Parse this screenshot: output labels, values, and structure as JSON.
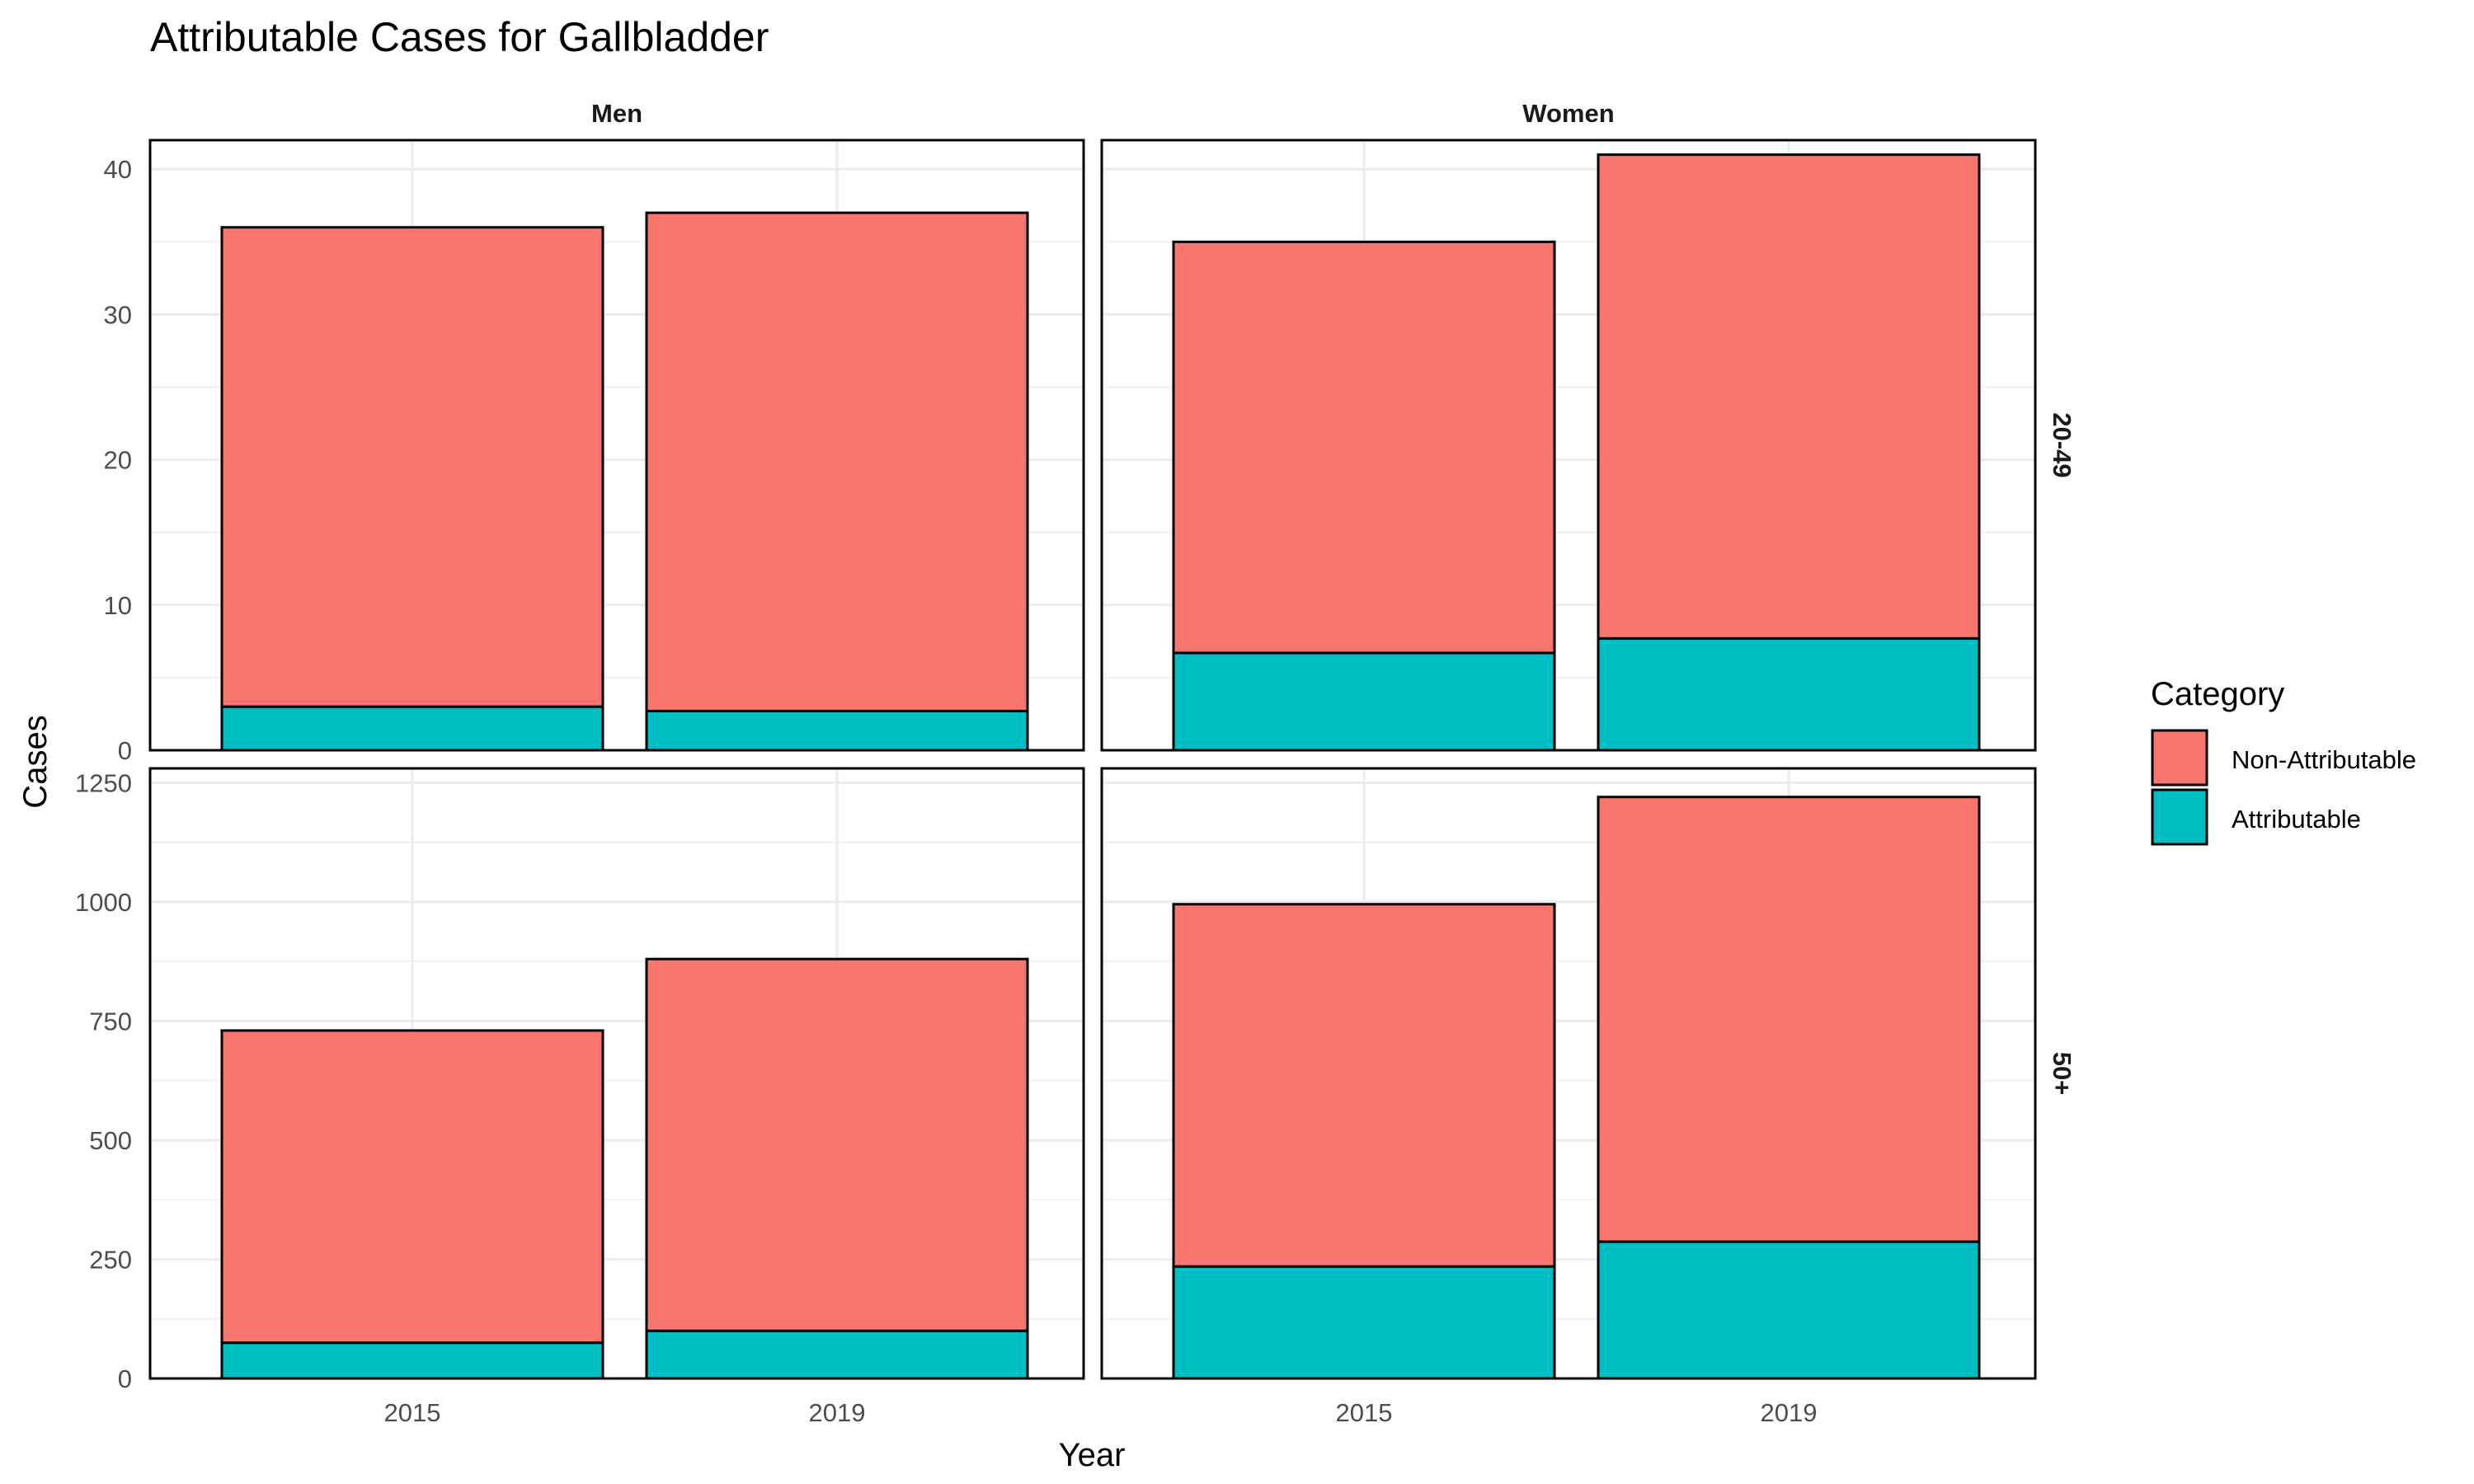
{
  "chart_data": {
    "type": "bar",
    "stacked": true,
    "title": "Attributable Cases for Gallbladder",
    "xlabel": "Year",
    "ylabel": "Cases",
    "legend": {
      "title": "Category",
      "position": "right",
      "entries": [
        "Non-Attributable",
        "Attributable"
      ]
    },
    "colors": {
      "Non-Attributable": "#F8766D",
      "Attributable": "#00BFC4"
    },
    "grid": true,
    "columns": [
      "Men",
      "Women"
    ],
    "rows": [
      {
        "label": "20-49",
        "ylim": [
          0,
          42
        ],
        "yticks": [
          0,
          10,
          20,
          30,
          40
        ]
      },
      {
        "label": "50+",
        "ylim": [
          0,
          1280
        ],
        "yticks": [
          0,
          250,
          500,
          750,
          1000,
          1250
        ]
      }
    ],
    "categories": [
      "2015",
      "2019"
    ],
    "panels": [
      {
        "row": "20-49",
        "col": "Men",
        "series": [
          {
            "name": "Attributable",
            "values": [
              3.0,
              2.7
            ]
          },
          {
            "name": "Non-Attributable",
            "values": [
              33.0,
              34.3
            ]
          }
        ]
      },
      {
        "row": "20-49",
        "col": "Women",
        "series": [
          {
            "name": "Attributable",
            "values": [
              6.7,
              7.7
            ]
          },
          {
            "name": "Non-Attributable",
            "values": [
              28.3,
              33.3
            ]
          }
        ]
      },
      {
        "row": "50+",
        "col": "Men",
        "series": [
          {
            "name": "Attributable",
            "values": [
              75,
              100
            ]
          },
          {
            "name": "Non-Attributable",
            "values": [
              655,
              780
            ]
          }
        ]
      },
      {
        "row": "50+",
        "col": "Women",
        "series": [
          {
            "name": "Attributable",
            "values": [
              235,
              287
            ]
          },
          {
            "name": "Non-Attributable",
            "values": [
              760,
              933
            ]
          }
        ]
      }
    ]
  }
}
